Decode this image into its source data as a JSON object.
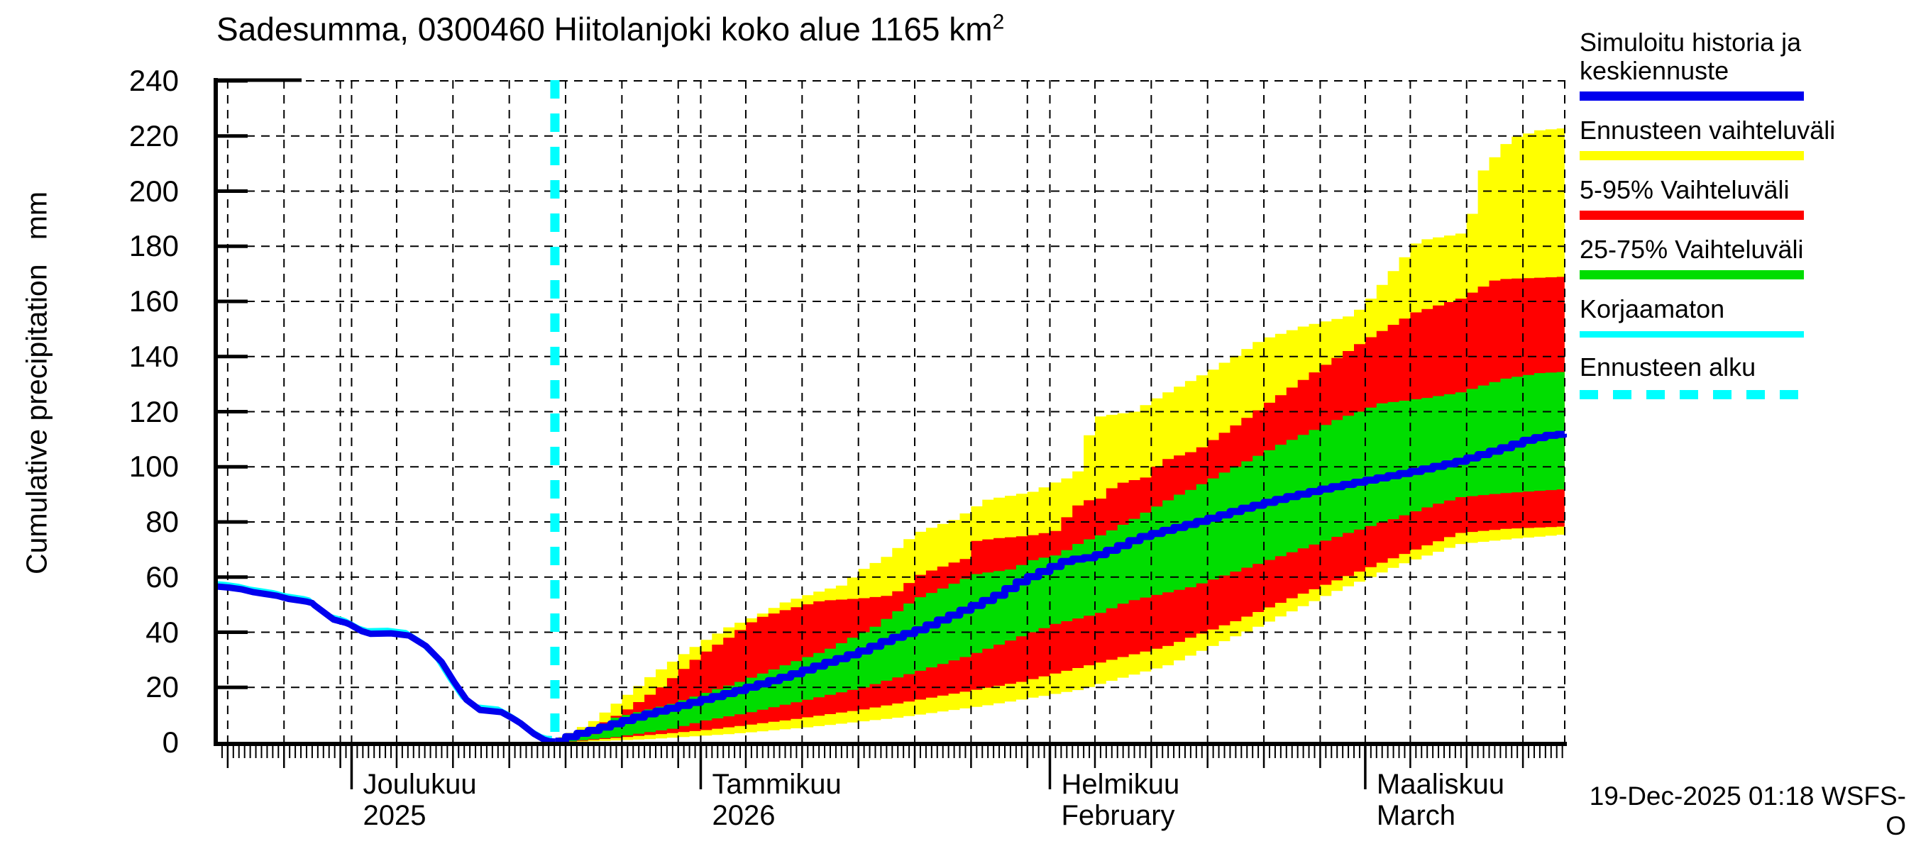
{
  "title": {
    "text": "Sadesumma, 0300460 Hiitolanjoki koko alue 1165 km",
    "sup": "2"
  },
  "timestamp": "19-Dec-2025 01:18 WSFS-O",
  "y_axis": {
    "label": "Cumulative precipitation   mm",
    "tick_values": [
      0,
      20,
      40,
      60,
      80,
      100,
      120,
      140,
      160,
      180,
      200,
      220,
      240
    ]
  },
  "x_axis": {
    "months": [
      {
        "label": "Joulukuu",
        "sublabel": "2025",
        "day": 12
      },
      {
        "label": "Tammikuu",
        "sublabel": "2026",
        "day": 43
      },
      {
        "label": "Helmikuu",
        "sublabel": "February",
        "day": 74
      },
      {
        "label": "Maaliskuu",
        "sublabel": "March",
        "day": 102
      }
    ]
  },
  "legend": {
    "items": [
      {
        "label": "Simuloitu historia ja keskiennuste",
        "color": "#0000ee",
        "style": "line"
      },
      {
        "label": "Ennusteen vaihteluväli",
        "color": "#ffff00",
        "style": "line"
      },
      {
        "label": "5-95% Vaihteluväli",
        "color": "#ff0000",
        "style": "line"
      },
      {
        "label": "25-75% Vaihteluväli",
        "color": "#00dd00",
        "style": "line"
      },
      {
        "label": "Korjaamaton",
        "color": "#00ffff",
        "style": "thin"
      },
      {
        "label": "Ennusteen alku",
        "color": "#00ffff",
        "style": "dashed"
      }
    ]
  },
  "colors": {
    "median": "#0000ee",
    "uncorrected": "#00ffff",
    "band_outer": "#ffff00",
    "band_90pct": "#ff0000",
    "band_50pct": "#00dd00",
    "forecast_start_line": "#00ffff",
    "grid": "#000000"
  },
  "chart_data": {
    "type": "area",
    "title": "Sadesumma, 0300460 Hiitolanjoki koko alue 1165 km2",
    "ylabel": "Cumulative precipitation mm",
    "x_unit": "days since 19-Nov-2025",
    "xlim": [
      0,
      119.75
    ],
    "ylim": [
      0,
      240
    ],
    "y_gridlines_mm": [
      20,
      40,
      60,
      80,
      100,
      120,
      140,
      160,
      180,
      200,
      220,
      240
    ],
    "x_gridline_days": [
      1,
      6,
      11,
      12,
      16,
      21,
      26,
      31,
      36,
      41,
      43,
      47,
      52,
      57,
      62,
      67,
      72,
      74,
      78,
      83,
      88,
      93,
      98,
      102,
      106,
      111,
      116
    ],
    "month_tick_days": [
      12,
      43,
      74,
      102
    ],
    "forecast_start_day": 30.05,
    "series": {
      "history_mean": [
        [
          0,
          56.6
        ],
        [
          1.1,
          56.2
        ],
        [
          2.2,
          55.6
        ],
        [
          3.3,
          54.5
        ],
        [
          4.3,
          53.9
        ],
        [
          5.4,
          53.2
        ],
        [
          6.4,
          52.1
        ],
        [
          7.4,
          51.5
        ],
        [
          8,
          51.1
        ],
        [
          8.5,
          50.6
        ],
        [
          8.7,
          49.8
        ],
        [
          10.4,
          44.6
        ],
        [
          11.5,
          43.4
        ],
        [
          11.8,
          42.9
        ],
        [
          12.9,
          40.4
        ],
        [
          13.7,
          39.4
        ],
        [
          15.5,
          39.6
        ],
        [
          17.1,
          38.8
        ],
        [
          18.6,
          35
        ],
        [
          20,
          29.2
        ],
        [
          21.1,
          22
        ],
        [
          22.2,
          15.5
        ],
        [
          23.4,
          11.8
        ],
        [
          25.3,
          11
        ],
        [
          26.2,
          9
        ],
        [
          27,
          7
        ],
        [
          28.2,
          3.1
        ],
        [
          29.1,
          1
        ],
        [
          29.6,
          0.4
        ],
        [
          30.1,
          0.3
        ]
      ],
      "forecast_median": [
        [
          30.1,
          0.5
        ],
        [
          31.2,
          2.5
        ],
        [
          33.1,
          4.5
        ],
        [
          35.6,
          7.5
        ],
        [
          38.1,
          10.5
        ],
        [
          40.6,
          13
        ],
        [
          42.9,
          15.5
        ],
        [
          45.7,
          18.5
        ],
        [
          48.2,
          21.5
        ],
        [
          50.7,
          24.5
        ],
        [
          53.2,
          28
        ],
        [
          56.9,
          33
        ],
        [
          59.5,
          37.5
        ],
        [
          62.1,
          41
        ],
        [
          64.6,
          45.5
        ],
        [
          67.5,
          50.6
        ],
        [
          69,
          53.4
        ],
        [
          71.1,
          58.5
        ],
        [
          73.2,
          62.4
        ],
        [
          75.3,
          66.2
        ],
        [
          77.4,
          67.2
        ],
        [
          79.5,
          70.5
        ],
        [
          81.6,
          74.3
        ],
        [
          84.7,
          77.7
        ],
        [
          87.3,
          80.5
        ],
        [
          91,
          85
        ],
        [
          94.8,
          89
        ],
        [
          98.6,
          92.5
        ],
        [
          102.4,
          95.5
        ],
        [
          106.2,
          98.5
        ],
        [
          110,
          102
        ],
        [
          113.7,
          106.5
        ],
        [
          116.3,
          110
        ],
        [
          118.1,
          111.5
        ],
        [
          119.7,
          112
        ]
      ],
      "band_max": [
        [
          30.3,
          2
        ],
        [
          33.1,
          8
        ],
        [
          35.6,
          16
        ],
        [
          38.1,
          24
        ],
        [
          40.6,
          31
        ],
        [
          42.9,
          37
        ],
        [
          45.1,
          42
        ],
        [
          47.6,
          46
        ],
        [
          50.1,
          51
        ],
        [
          53.2,
          55
        ],
        [
          55.1,
          57
        ],
        [
          57,
          63
        ],
        [
          58.9,
          67
        ],
        [
          61.7,
          76
        ],
        [
          65.2,
          81
        ],
        [
          67.9,
          88
        ],
        [
          72.1,
          91
        ],
        [
          74.4,
          95
        ],
        [
          75.9,
          97
        ],
        [
          77.5,
          118
        ],
        [
          81,
          120
        ],
        [
          83.5,
          126
        ],
        [
          87.9,
          135
        ],
        [
          92.3,
          146
        ],
        [
          96.1,
          151
        ],
        [
          100.5,
          155
        ],
        [
          102,
          161
        ],
        [
          106.2,
          182
        ],
        [
          110.6,
          185
        ],
        [
          111.9,
          207
        ],
        [
          114.4,
          219
        ],
        [
          116.9,
          222
        ],
        [
          119.7,
          223
        ]
      ],
      "band_p95": [
        [
          30.4,
          1.5
        ],
        [
          33,
          5
        ],
        [
          36,
          12
        ],
        [
          39,
          20
        ],
        [
          42,
          30
        ],
        [
          43,
          33
        ],
        [
          45,
          38
        ],
        [
          47.5,
          45
        ],
        [
          50,
          48
        ],
        [
          53.2,
          51.4
        ],
        [
          56.9,
          52.3
        ],
        [
          59.5,
          53.4
        ],
        [
          62.1,
          61.1
        ],
        [
          65.1,
          65.4
        ],
        [
          66.1,
          66.7
        ],
        [
          67,
          73.1
        ],
        [
          68.6,
          74
        ],
        [
          71.7,
          75
        ],
        [
          74.4,
          77
        ],
        [
          75,
          81.7
        ],
        [
          76.4,
          87.7
        ],
        [
          77.9,
          88.1
        ],
        [
          79.4,
          93.7
        ],
        [
          82.1,
          96.2
        ],
        [
          83.5,
          102.2
        ],
        [
          85.2,
          104.4
        ],
        [
          86.6,
          106
        ],
        [
          90,
          115
        ],
        [
          94,
          126
        ],
        [
          98,
          137
        ],
        [
          102,
          147
        ],
        [
          106,
          156
        ],
        [
          110,
          161
        ],
        [
          113.2,
          168
        ],
        [
          119.7,
          169
        ]
      ],
      "band_p75": [
        [
          30.6,
          0.8
        ],
        [
          33,
          3
        ],
        [
          35,
          9
        ],
        [
          38,
          12
        ],
        [
          40,
          14
        ],
        [
          43,
          18
        ],
        [
          46,
          22
        ],
        [
          50,
          28
        ],
        [
          54,
          34
        ],
        [
          58,
          42
        ],
        [
          61.6,
          52.1
        ],
        [
          63.8,
          55.5
        ],
        [
          67,
          61.1
        ],
        [
          70.1,
          62.8
        ],
        [
          72.1,
          66.3
        ],
        [
          74.2,
          68
        ],
        [
          76.3,
          72.7
        ],
        [
          78.4,
          75.7
        ],
        [
          80.5,
          80
        ],
        [
          82.6,
          84.7
        ],
        [
          84.7,
          89.4
        ],
        [
          86,
          91.6
        ],
        [
          90,
          100
        ],
        [
          94,
          108
        ],
        [
          99,
          117
        ],
        [
          103,
          123
        ],
        [
          107,
          125
        ],
        [
          110,
          127
        ],
        [
          114,
          132
        ],
        [
          117,
          134
        ],
        [
          119.7,
          134.5
        ]
      ],
      "band_p25": [
        [
          31,
          0.4
        ],
        [
          35,
          2
        ],
        [
          40,
          5
        ],
        [
          43,
          8
        ],
        [
          47,
          11
        ],
        [
          52,
          15.5
        ],
        [
          57,
          20
        ],
        [
          62,
          26
        ],
        [
          66,
          31
        ],
        [
          70,
          37
        ],
        [
          74,
          43
        ],
        [
          78,
          47
        ],
        [
          80.5,
          51.2
        ],
        [
          86,
          56.3
        ],
        [
          90,
          62
        ],
        [
          95,
          69
        ],
        [
          100,
          76
        ],
        [
          104,
          81
        ],
        [
          107.5,
          86
        ],
        [
          110,
          89
        ],
        [
          114,
          90.5
        ],
        [
          119.7,
          92
        ]
      ],
      "band_p05": [
        [
          31.2,
          0.3
        ],
        [
          36,
          2
        ],
        [
          43,
          4.5
        ],
        [
          50,
          8
        ],
        [
          57,
          12
        ],
        [
          64,
          17
        ],
        [
          71,
          22
        ],
        [
          78,
          29
        ],
        [
          84,
          35
        ],
        [
          90,
          44
        ],
        [
          96,
          54
        ],
        [
          101,
          62
        ],
        [
          106,
          70
        ],
        [
          110,
          76
        ],
        [
          114,
          77.5
        ],
        [
          119.7,
          78.4
        ]
      ],
      "band_min": [
        [
          31.4,
          0.2
        ],
        [
          38,
          1.2
        ],
        [
          45,
          3
        ],
        [
          52,
          5.5
        ],
        [
          60,
          9
        ],
        [
          68,
          13.5
        ],
        [
          76,
          19
        ],
        [
          84,
          28
        ],
        [
          92,
          42
        ],
        [
          99,
          55
        ],
        [
          105,
          65
        ],
        [
          110,
          72
        ],
        [
          115,
          74
        ],
        [
          119.7,
          75.6
        ]
      ]
    }
  }
}
